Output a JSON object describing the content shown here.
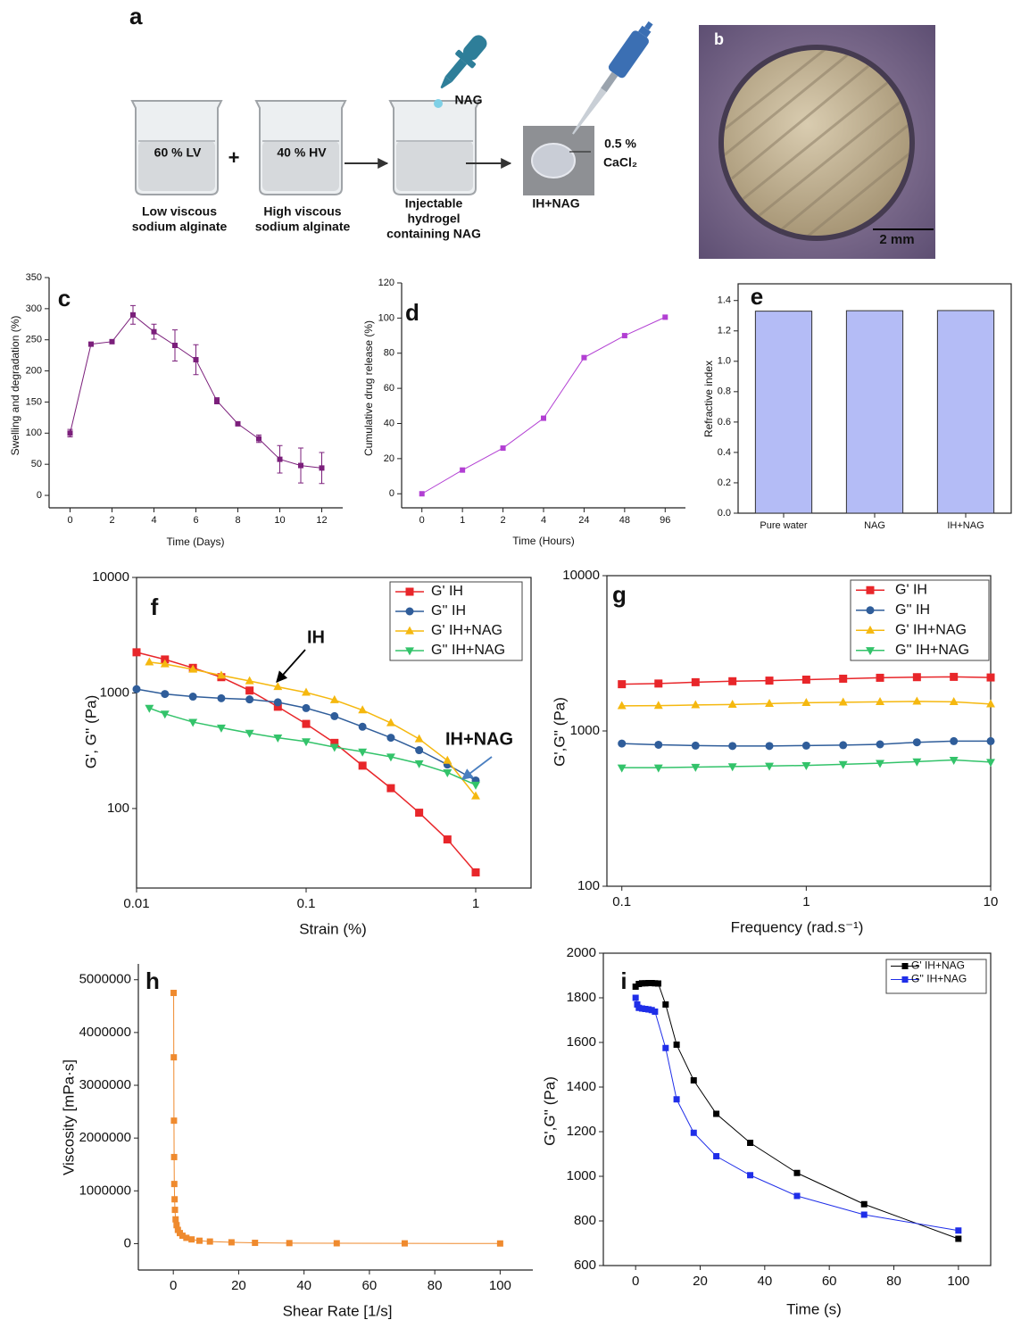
{
  "schematic": {
    "panel_label": "a",
    "beakers": [
      "60 % LV",
      "40 % HV"
    ],
    "operator": "+",
    "drug": "NAG",
    "captions": [
      [
        "Low viscous",
        "sodium alginate"
      ],
      [
        "High viscous",
        "sodium alginate"
      ],
      [
        "Injectable",
        "hydrogel",
        "containing NAG"
      ]
    ],
    "crosslinker": [
      "0.5 %",
      "CaCl₂"
    ],
    "product": "IH+NAG"
  },
  "photo": {
    "panel_label": "b",
    "scale_bar": "2 mm"
  },
  "chart_data": [
    {
      "type": "line",
      "panel_label": "c",
      "xlabel": "Time (Days)",
      "ylabel": "Swelling and degradation (%)",
      "x": [
        0,
        1,
        2,
        3,
        4,
        5,
        6,
        7,
        8,
        9,
        10,
        11,
        12
      ],
      "values": [
        100,
        243,
        247,
        290,
        263,
        241,
        218,
        152,
        115,
        91,
        58,
        48,
        44
      ],
      "errors": [
        6,
        3,
        3,
        15,
        12,
        25,
        24,
        5,
        3,
        6,
        22,
        28,
        25
      ],
      "color": "#7b1f7b",
      "marker": "square",
      "xlim": [
        -1,
        13
      ],
      "ylim": [
        -20,
        350
      ],
      "xticks": [
        0,
        2,
        4,
        6,
        8,
        10,
        12
      ],
      "yticks": [
        0,
        50,
        100,
        150,
        200,
        250,
        300,
        350
      ]
    },
    {
      "type": "line",
      "panel_label": "d",
      "xlabel": "Time (Hours)",
      "ylabel": "Cumulative drug release (%)",
      "categories": [
        "0",
        "1",
        "2",
        "4",
        "24",
        "48",
        "96"
      ],
      "values": [
        0,
        13.5,
        26,
        43,
        77.5,
        90,
        100.5
      ],
      "color": "#b23fd3",
      "marker": "square",
      "ylim": [
        -8,
        120
      ],
      "yticks": [
        0,
        20,
        40,
        60,
        80,
        100,
        120
      ]
    },
    {
      "type": "bar",
      "panel_label": "e",
      "ylabel": "Refractive index",
      "categories": [
        "Pure water",
        "NAG",
        "IH+NAG"
      ],
      "values": [
        1.33,
        1.333,
        1.334
      ],
      "color": "#b4bcf6",
      "ylim": [
        0,
        1.51
      ],
      "yticks": [
        {
          "value": 0,
          "label": "0.0"
        },
        0.2,
        0.4,
        0.6,
        0.8,
        {
          "value": 1,
          "label": "1.0"
        },
        1.2,
        1.4
      ]
    },
    {
      "type": "line",
      "panel_label": "f",
      "xlabel": "Strain (%)",
      "ylabel": "G', G'' (Pa)",
      "xlog": true,
      "ylog": true,
      "legend": "upper right",
      "annotations": [
        "IH",
        "IH+NAG"
      ],
      "series": [
        {
          "name": "G' IH",
          "color": "#e8262a",
          "marker": "square",
          "x": [
            0.01,
            0.0147,
            0.0215,
            0.0316,
            0.0464,
            0.0681,
            0.1,
            0.147,
            0.215,
            0.316,
            0.464,
            0.681,
            1
          ],
          "values": [
            2250,
            1950,
            1650,
            1370,
            1050,
            760,
            540,
            370,
            235,
            150,
            92,
            54,
            28
          ]
        },
        {
          "name": "G'' IH",
          "color": "#2f5d9a",
          "marker": "circle",
          "x": [
            0.01,
            0.0147,
            0.0215,
            0.0316,
            0.0464,
            0.0681,
            0.1,
            0.147,
            0.215,
            0.316,
            0.464,
            0.681,
            1
          ],
          "values": [
            1080,
            980,
            930,
            900,
            880,
            830,
            740,
            630,
            510,
            410,
            320,
            240,
            175
          ]
        },
        {
          "name": "G' IH+NAG",
          "color": "#f5b80f",
          "marker": "triangle-up",
          "x": [
            0.0119,
            0.0147,
            0.0215,
            0.0316,
            0.0464,
            0.0681,
            0.1,
            0.147,
            0.215,
            0.316,
            0.464,
            0.681,
            1
          ],
          "values": [
            1850,
            1780,
            1600,
            1420,
            1270,
            1130,
            1010,
            870,
            710,
            550,
            400,
            260,
            128
          ]
        },
        {
          "name": "G'' IH+NAG",
          "color": "#33c36a",
          "marker": "triangle-down",
          "x": [
            0.0119,
            0.0147,
            0.0215,
            0.0316,
            0.0464,
            0.0681,
            0.1,
            0.147,
            0.215,
            0.316,
            0.464,
            0.681,
            1
          ],
          "values": [
            740,
            660,
            560,
            500,
            450,
            410,
            380,
            340,
            310,
            280,
            245,
            205,
            160
          ]
        }
      ],
      "xlim": [
        0.01,
        2.12
      ],
      "ylim": [
        20.5,
        10000
      ],
      "xticks": [
        0.01,
        0.1,
        1
      ],
      "yticks": [
        100,
        1000,
        10000
      ]
    },
    {
      "type": "line",
      "panel_label": "g",
      "xlabel": "Frequency (rad.s⁻¹)",
      "ylabel": "G',G'' (Pa)",
      "xlog": true,
      "ylog": true,
      "legend": "upper right",
      "series": [
        {
          "name": "G' IH",
          "color": "#e8262a",
          "marker": "square",
          "x": [
            0.1,
            0.158,
            0.251,
            0.398,
            0.631,
            1,
            1.585,
            2.512,
            3.981,
            6.31,
            10
          ],
          "values": [
            2000,
            2020,
            2060,
            2090,
            2110,
            2140,
            2170,
            2200,
            2220,
            2230,
            2210
          ]
        },
        {
          "name": "G'' IH",
          "color": "#2f5d9a",
          "marker": "circle",
          "x": [
            0.1,
            0.158,
            0.251,
            0.398,
            0.631,
            1,
            1.585,
            2.512,
            3.981,
            6.31,
            10
          ],
          "values": [
            830,
            815,
            805,
            800,
            800,
            805,
            810,
            820,
            845,
            860,
            860
          ]
        },
        {
          "name": "G' IH+NAG",
          "color": "#f5b80f",
          "marker": "triangle-up",
          "x": [
            0.1,
            0.158,
            0.251,
            0.398,
            0.631,
            1,
            1.585,
            2.512,
            3.981,
            6.31,
            10
          ],
          "values": [
            1450,
            1455,
            1470,
            1480,
            1500,
            1520,
            1530,
            1540,
            1550,
            1540,
            1490
          ]
        },
        {
          "name": "G'' IH+NAG",
          "color": "#33c36a",
          "marker": "triangle-down",
          "x": [
            0.1,
            0.158,
            0.251,
            0.398,
            0.631,
            1,
            1.585,
            2.512,
            3.981,
            6.31,
            10
          ],
          "values": [
            580,
            580,
            585,
            590,
            595,
            600,
            610,
            620,
            635,
            650,
            630
          ]
        }
      ],
      "xlim": [
        0.083,
        10
      ],
      "ylim": [
        100,
        10000
      ],
      "xticks": [
        0.1,
        1,
        10
      ],
      "yticks": [
        100,
        1000,
        10000
      ]
    },
    {
      "type": "line",
      "panel_label": "h",
      "xlabel": "Shear Rate [1/s]",
      "ylabel": "Viscosity [mPa·s]",
      "x": [
        0.1,
        0.15,
        0.2,
        0.25,
        0.3,
        0.4,
        0.5,
        0.7,
        1,
        1.4,
        2,
        2.8,
        4,
        5.6,
        8,
        11.2,
        17.8,
        25,
        35.5,
        50,
        70.8,
        100
      ],
      "values": [
        4750000,
        3530000,
        2330000,
        1640000,
        1130000,
        840000,
        640000,
        460000,
        350000,
        260000,
        200000,
        150000,
        110000,
        80000,
        55000,
        40000,
        25000,
        15000,
        10000,
        7000,
        5000,
        3000
      ],
      "color": "#ef8a2e",
      "marker": "square",
      "xlim": [
        -10.7,
        110
      ],
      "ylim": [
        -500000,
        5300000
      ],
      "xticks": [
        0,
        20,
        40,
        60,
        80,
        100
      ],
      "yticks": [
        0,
        1000000,
        2000000,
        3000000,
        4000000,
        5000000
      ]
    },
    {
      "type": "line",
      "panel_label": "i",
      "xlabel": "Time (s)",
      "ylabel": "G',G'' (Pa)",
      "legend": "upper right",
      "series": [
        {
          "name": "G' IH+NAG",
          "color": "#000000",
          "marker": "square",
          "x": [
            0,
            1,
            2,
            3,
            4,
            5,
            6,
            7,
            9.3,
            12.7,
            18,
            25,
            35.5,
            50,
            70.8,
            100
          ],
          "values": [
            1850,
            1862,
            1865,
            1865,
            1866,
            1866,
            1865,
            1864,
            1770,
            1590,
            1430,
            1280,
            1150,
            1015,
            875,
            720
          ]
        },
        {
          "name": "G'' IH+NAG",
          "color": "#1f2ee8",
          "marker": "square",
          "x": [
            0,
            0.5,
            1,
            2,
            3,
            4,
            5,
            6,
            9.3,
            12.7,
            18,
            25,
            35.5,
            50,
            70.8,
            100
          ],
          "values": [
            1800,
            1770,
            1755,
            1752,
            1750,
            1748,
            1745,
            1738,
            1575,
            1345,
            1195,
            1090,
            1005,
            912,
            828,
            757
          ]
        }
      ],
      "xlim": [
        -10,
        110
      ],
      "ylim": [
        600,
        2000
      ],
      "xticks": [
        0,
        20,
        40,
        60,
        80,
        100
      ],
      "yticks": [
        600,
        800,
        1000,
        1200,
        1400,
        1600,
        1800,
        2000
      ]
    }
  ]
}
